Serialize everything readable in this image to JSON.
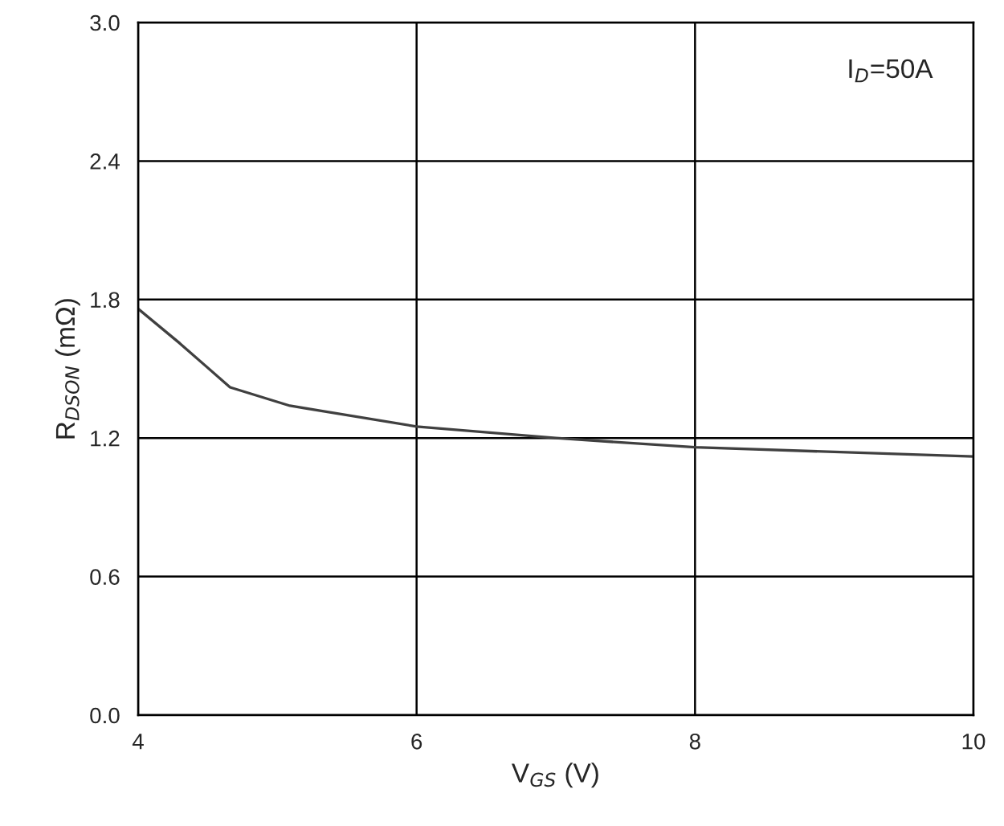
{
  "chart_data": {
    "type": "line",
    "xlabel": "V$_{GS}$ (V)",
    "ylabel": "R$_{DSON}$ (mΩ)",
    "annotations": [
      "I$_{D}$=50A"
    ],
    "x": [
      4,
      4.3,
      4.66,
      5.09,
      6,
      7,
      8,
      9,
      10
    ],
    "series": [
      {
        "color": "#404040",
        "values": [
          1.76,
          1.61,
          1.42,
          1.34,
          1.25,
          1.2,
          1.16,
          1.14,
          1.12
        ]
      }
    ],
    "xlim": [
      4,
      10
    ],
    "xticks": [
      4,
      6,
      8,
      10
    ],
    "ylim": [
      0,
      3
    ],
    "yticks": [
      {
        "value": 0,
        "label": "0.0"
      },
      {
        "value": 0.6,
        "label": "0.6"
      },
      {
        "value": 1.2,
        "label": "1.2"
      },
      {
        "value": 1.8,
        "label": "1.8"
      },
      {
        "value": 2.4,
        "label": "2.4"
      },
      {
        "value": 3,
        "label": "3.0"
      }
    ],
    "grid": true,
    "line_style": "solid",
    "marker": "none"
  }
}
